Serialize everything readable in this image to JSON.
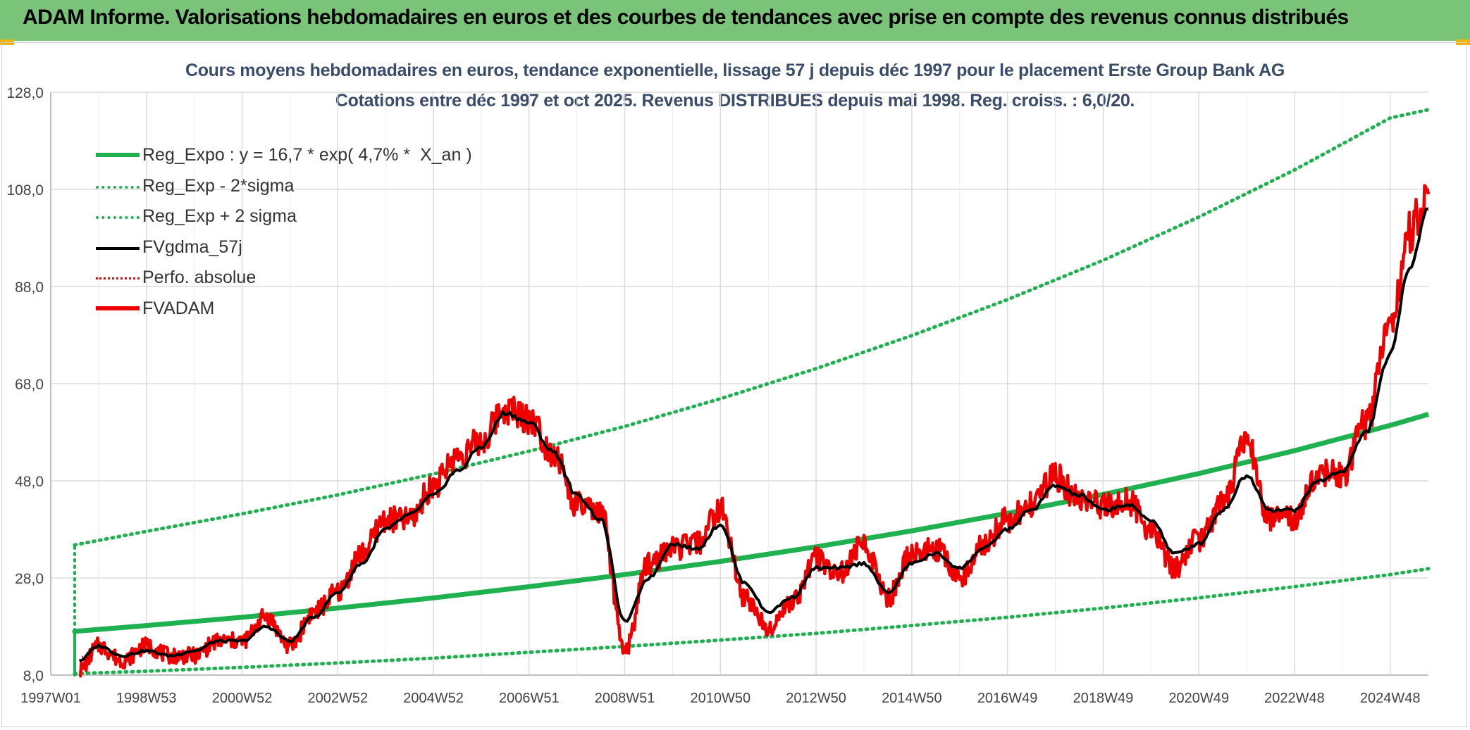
{
  "banner": {
    "title": "ADAM Informe. Valorisations hebdomadaires en euros et des courbes de tendances avec prise en compte des revenus connus distribués"
  },
  "colors": {
    "banner": "#7ac47a",
    "trend": "#1fb04f",
    "red": "#ee0000",
    "black": "#000000",
    "grid": "#dcdcdc",
    "title": "#3a4c6a"
  },
  "chart_data": {
    "type": "line",
    "title": "Cours moyens hebdomadaires en euros, tendance exponentielle, lissage 57 j depuis déc 1997 pour le placement Erste Group Bank AG",
    "subtitle": "Cotations entre déc 1997 et oct 2025. Revenus DISTRIBUES depuis mai 1998. Reg. croiss. : 6,0/20.",
    "xlabel": "",
    "ylabel": "",
    "ylim": [
      8,
      128
    ],
    "xlim": [
      1997.0,
      2025.8
    ],
    "grid": true,
    "legend_position": "top-left",
    "y_ticks": [
      "8,0",
      "28,0",
      "48,0",
      "68,0",
      "88,0",
      "108,0",
      "128,0"
    ],
    "y_tick_values": [
      8,
      28,
      48,
      68,
      88,
      108,
      128
    ],
    "x_ticks": [
      "1997W01",
      "1998W53",
      "2000W52",
      "2002W52",
      "2004W52",
      "2006W51",
      "2008W51",
      "2010W50",
      "2012W50",
      "2014W50",
      "2016W49",
      "2018W49",
      "2020W49",
      "2022W48",
      "2024W48"
    ],
    "x_tick_values": [
      1997.0,
      1999.0,
      2001.0,
      2003.0,
      2005.0,
      2007.0,
      2009.0,
      2011.0,
      2013.0,
      2015.0,
      2017.0,
      2019.0,
      2021.0,
      2023.0,
      2025.0
    ],
    "legend": [
      {
        "label": "Reg_Expo : y = 16,7 * exp( 4,7% *  X_an )",
        "style": "solid-thick-green"
      },
      {
        "label": "Reg_Exp - 2*sigma",
        "style": "dotted-green"
      },
      {
        "label": "Reg_Exp + 2 sigma",
        "style": "dotted-green"
      },
      {
        "label": "FVgdma_57j",
        "style": "solid-black"
      },
      {
        "label": "Perfo. absolue",
        "style": "dotted-red"
      },
      {
        "label": "FVADAM",
        "style": "solid-thick-red"
      }
    ],
    "series": [
      {
        "name": "Reg_Expo",
        "x": [
          1997.5,
          1999,
          2001,
          2003,
          2005,
          2007,
          2009,
          2011,
          2013,
          2015,
          2017,
          2019,
          2021,
          2023,
          2025,
          2025.8
        ],
        "values": [
          17.0,
          18.2,
          19.9,
          21.8,
          23.9,
          26.2,
          28.7,
          31.4,
          34.4,
          37.7,
          41.3,
          45.2,
          49.5,
          54.2,
          59.4,
          61.7
        ]
      },
      {
        "name": "Reg_Exp - 2*sigma",
        "x": [
          1997.5,
          1999,
          2001,
          2003,
          2005,
          2007,
          2009,
          2011,
          2013,
          2015,
          2017,
          2019,
          2021,
          2023,
          2025,
          2025.8
        ],
        "values": [
          8.3,
          8.8,
          9.6,
          10.5,
          11.5,
          12.7,
          13.9,
          15.2,
          16.6,
          18.2,
          19.9,
          21.8,
          23.9,
          26.2,
          28.7,
          29.9
        ]
      },
      {
        "name": "Reg_Exp + 2 sigma",
        "x": [
          1997.5,
          1999,
          2001,
          2003,
          2005,
          2007,
          2009,
          2011,
          2013,
          2015,
          2017,
          2019,
          2021,
          2023,
          2025,
          2025.8
        ],
        "values": [
          34.8,
          37.6,
          41.2,
          45.1,
          49.4,
          54.1,
          59.2,
          64.9,
          71.1,
          77.9,
          85.3,
          93.4,
          102.3,
          112.0,
          122.7,
          124.4
        ]
      },
      {
        "name": "FVgdma_57j",
        "x": [
          1997.6,
          1998.0,
          1998.5,
          1999.0,
          1999.5,
          2000.0,
          2000.5,
          2001.0,
          2001.5,
          2002.0,
          2002.5,
          2003.0,
          2003.5,
          2004.0,
          2004.5,
          2005.0,
          2005.5,
          2006.0,
          2006.5,
          2007.0,
          2007.5,
          2008.0,
          2008.5,
          2009.0,
          2009.5,
          2010.0,
          2010.5,
          2011.0,
          2011.5,
          2012.0,
          2012.5,
          2013.0,
          2013.5,
          2014.0,
          2014.5,
          2015.0,
          2015.5,
          2016.0,
          2016.5,
          2017.0,
          2017.5,
          2018.0,
          2018.5,
          2019.0,
          2019.5,
          2020.0,
          2020.5,
          2021.0,
          2021.5,
          2022.0,
          2022.5,
          2023.0,
          2023.5,
          2024.0,
          2024.5,
          2025.0,
          2025.4,
          2025.8
        ],
        "values": [
          11,
          14,
          12,
          13,
          12,
          13,
          15,
          15,
          18,
          15,
          20,
          25,
          31,
          38,
          41,
          45,
          50,
          55,
          62,
          60,
          54,
          45,
          40,
          19,
          28,
          35,
          34,
          39,
          27,
          21,
          24,
          30,
          30,
          31,
          25,
          31,
          33,
          30,
          34,
          38,
          42,
          47,
          45,
          42,
          43,
          40,
          33,
          35,
          42,
          49,
          42,
          42,
          48,
          50,
          58,
          74,
          92,
          104
        ]
      },
      {
        "name": "Perfo. absolue",
        "x": [
          1997.6,
          1997.7
        ],
        "values": [
          11,
          12
        ]
      },
      {
        "name": "FVADAM",
        "x": [
          1997.6,
          1998.0,
          1998.5,
          1999.0,
          1999.5,
          2000.0,
          2000.5,
          2001.0,
          2001.5,
          2002.0,
          2002.5,
          2003.0,
          2003.5,
          2004.0,
          2004.5,
          2005.0,
          2005.5,
          2006.0,
          2006.5,
          2007.0,
          2007.5,
          2008.0,
          2008.5,
          2009.0,
          2009.5,
          2010.0,
          2010.5,
          2011.0,
          2011.5,
          2012.0,
          2012.5,
          2013.0,
          2013.5,
          2014.0,
          2014.5,
          2015.0,
          2015.5,
          2016.0,
          2016.5,
          2017.0,
          2017.5,
          2018.0,
          2018.5,
          2019.0,
          2019.5,
          2020.0,
          2020.5,
          2021.0,
          2021.5,
          2022.0,
          2022.5,
          2023.0,
          2023.5,
          2024.0,
          2024.5,
          2025.0,
          2025.4,
          2025.8
        ],
        "values": [
          9,
          14,
          11,
          14,
          12,
          12,
          15,
          15,
          20,
          14,
          21,
          25,
          33,
          40,
          40,
          47,
          53,
          56,
          63,
          61,
          54,
          43,
          41,
          13,
          31,
          34,
          35,
          42,
          24,
          18,
          23,
          32,
          29,
          35,
          24,
          33,
          34,
          28,
          35,
          40,
          43,
          49,
          44,
          43,
          44,
          38,
          30,
          36,
          43,
          56,
          40,
          40,
          50,
          49,
          60,
          80,
          99,
          107
        ]
      }
    ]
  }
}
